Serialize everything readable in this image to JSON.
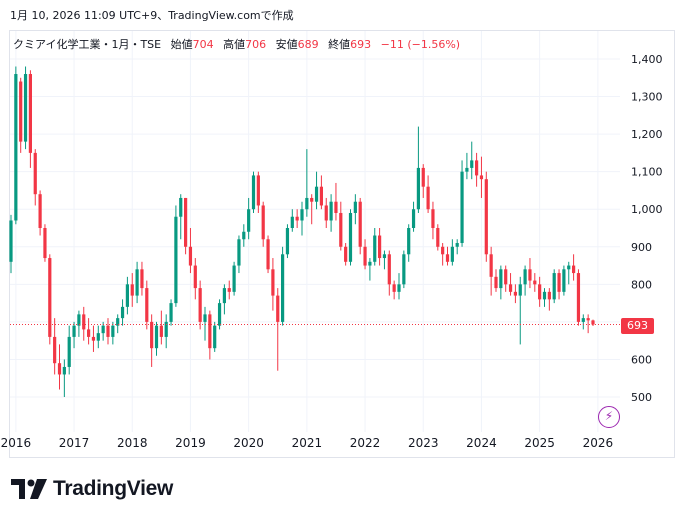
{
  "caption": "1月 10, 2026 11:09 UTC+9、TradingView.comで作成",
  "legend": {
    "symbol": "クミアイ化学工業・1月・TSE",
    "open_label": "始値",
    "open": "704",
    "high_label": "高値",
    "high": "706",
    "low_label": "安値",
    "low": "689",
    "close_label": "終値",
    "close": "693",
    "change": "−11 (−1.56%)"
  },
  "last_price_label": "693",
  "brand": "TradingView",
  "colors": {
    "up": "#089981",
    "down": "#f23645",
    "accent": "#9c27b0"
  },
  "chart_data": {
    "type": "candlestick",
    "interval": "1M",
    "ylim": [
      420,
      1440
    ],
    "y_ticks": [
      "500",
      "600",
      "700",
      "800",
      "900",
      "1,000",
      "1,100",
      "1,200",
      "1,300",
      "1,400"
    ],
    "x_ticks": [
      "2016",
      "2017",
      "2018",
      "2019",
      "2020",
      "2021",
      "2022",
      "2023",
      "2024",
      "2025",
      "2026"
    ],
    "last_price": 693,
    "start": "2015-12",
    "candles": [
      [
        860,
        985,
        830,
        970
      ],
      [
        970,
        1380,
        960,
        1360
      ],
      [
        1340,
        1350,
        1150,
        1180
      ],
      [
        1180,
        1380,
        1160,
        1360
      ],
      [
        1360,
        1370,
        1110,
        1150
      ],
      [
        1150,
        1160,
        1010,
        1040
      ],
      [
        1040,
        1050,
        930,
        950
      ],
      [
        950,
        960,
        860,
        870
      ],
      [
        870,
        880,
        640,
        660
      ],
      [
        660,
        710,
        560,
        590
      ],
      [
        590,
        640,
        520,
        560
      ],
      [
        560,
        600,
        500,
        580
      ],
      [
        580,
        690,
        560,
        660
      ],
      [
        660,
        700,
        630,
        690
      ],
      [
        690,
        730,
        660,
        720
      ],
      [
        720,
        740,
        650,
        680
      ],
      [
        680,
        710,
        640,
        660
      ],
      [
        660,
        690,
        620,
        650
      ],
      [
        650,
        690,
        630,
        670
      ],
      [
        670,
        700,
        650,
        690
      ],
      [
        690,
        710,
        640,
        660
      ],
      [
        660,
        700,
        640,
        690
      ],
      [
        690,
        720,
        670,
        710
      ],
      [
        710,
        760,
        690,
        740
      ],
      [
        740,
        820,
        720,
        800
      ],
      [
        800,
        830,
        740,
        770
      ],
      [
        770,
        860,
        750,
        840
      ],
      [
        840,
        860,
        770,
        790
      ],
      [
        790,
        810,
        680,
        700
      ],
      [
        700,
        720,
        580,
        630
      ],
      [
        630,
        700,
        610,
        690
      ],
      [
        690,
        730,
        640,
        660
      ],
      [
        660,
        720,
        630,
        700
      ],
      [
        700,
        760,
        690,
        750
      ],
      [
        750,
        1010,
        740,
        980
      ],
      [
        980,
        1040,
        920,
        1030
      ],
      [
        1030,
        1030,
        880,
        900
      ],
      [
        900,
        950,
        830,
        850
      ],
      [
        850,
        870,
        760,
        790
      ],
      [
        790,
        810,
        680,
        700
      ],
      [
        700,
        740,
        650,
        720
      ],
      [
        720,
        730,
        600,
        630
      ],
      [
        630,
        700,
        620,
        690
      ],
      [
        690,
        760,
        680,
        750
      ],
      [
        750,
        800,
        720,
        790
      ],
      [
        790,
        810,
        760,
        780
      ],
      [
        780,
        860,
        770,
        850
      ],
      [
        850,
        930,
        830,
        920
      ],
      [
        920,
        960,
        900,
        940
      ],
      [
        940,
        1030,
        920,
        1000
      ],
      [
        1000,
        1100,
        990,
        1090
      ],
      [
        1090,
        1100,
        990,
        1010
      ],
      [
        1010,
        1020,
        900,
        920
      ],
      [
        920,
        930,
        830,
        840
      ],
      [
        840,
        870,
        730,
        770
      ],
      [
        770,
        790,
        570,
        700
      ],
      [
        700,
        900,
        690,
        880
      ],
      [
        880,
        960,
        870,
        950
      ],
      [
        950,
        1000,
        940,
        980
      ],
      [
        980,
        1000,
        950,
        970
      ],
      [
        970,
        1020,
        930,
        1000
      ],
      [
        1000,
        1160,
        980,
        1030
      ],
      [
        1030,
        1040,
        960,
        1020
      ],
      [
        1020,
        1100,
        1000,
        1060
      ],
      [
        1060,
        1090,
        1000,
        1010
      ],
      [
        1010,
        1030,
        950,
        970
      ],
      [
        970,
        1040,
        940,
        1020
      ],
      [
        1020,
        1070,
        970,
        990
      ],
      [
        990,
        1020,
        890,
        900
      ],
      [
        900,
        910,
        850,
        860
      ],
      [
        860,
        1000,
        850,
        990
      ],
      [
        990,
        1040,
        960,
        1020
      ],
      [
        1020,
        1030,
        880,
        900
      ],
      [
        900,
        920,
        840,
        850
      ],
      [
        850,
        870,
        810,
        860
      ],
      [
        860,
        950,
        850,
        930
      ],
      [
        930,
        950,
        850,
        870
      ],
      [
        870,
        890,
        840,
        880
      ],
      [
        880,
        890,
        770,
        800
      ],
      [
        800,
        810,
        760,
        780
      ],
      [
        780,
        830,
        760,
        800
      ],
      [
        800,
        890,
        790,
        880
      ],
      [
        880,
        960,
        860,
        950
      ],
      [
        950,
        1020,
        940,
        1000
      ],
      [
        1000,
        1220,
        990,
        1110
      ],
      [
        1110,
        1120,
        1030,
        1060
      ],
      [
        1060,
        1090,
        990,
        1000
      ],
      [
        1000,
        1020,
        920,
        950
      ],
      [
        950,
        960,
        890,
        900
      ],
      [
        900,
        910,
        850,
        880
      ],
      [
        880,
        900,
        850,
        860
      ],
      [
        860,
        920,
        850,
        900
      ],
      [
        900,
        920,
        880,
        910
      ],
      [
        910,
        1130,
        900,
        1100
      ],
      [
        1100,
        1150,
        1080,
        1110
      ],
      [
        1110,
        1180,
        1080,
        1130
      ],
      [
        1130,
        1150,
        1060,
        1090
      ],
      [
        1090,
        1140,
        1030,
        1080
      ],
      [
        1080,
        1100,
        860,
        880
      ],
      [
        880,
        900,
        770,
        820
      ],
      [
        820,
        840,
        780,
        790
      ],
      [
        790,
        850,
        760,
        840
      ],
      [
        840,
        850,
        780,
        800
      ],
      [
        800,
        830,
        770,
        780
      ],
      [
        780,
        800,
        750,
        770
      ],
      [
        770,
        820,
        640,
        800
      ],
      [
        800,
        850,
        770,
        840
      ],
      [
        840,
        870,
        790,
        810
      ],
      [
        810,
        830,
        780,
        800
      ],
      [
        800,
        820,
        740,
        760
      ],
      [
        760,
        790,
        740,
        780
      ],
      [
        780,
        790,
        730,
        760
      ],
      [
        760,
        840,
        750,
        830
      ],
      [
        830,
        840,
        760,
        780
      ],
      [
        780,
        850,
        770,
        840
      ],
      [
        840,
        860,
        800,
        850
      ],
      [
        850,
        880,
        810,
        830
      ],
      [
        830,
        840,
        690,
        700
      ],
      [
        700,
        720,
        680,
        710
      ],
      [
        710,
        720,
        670,
        704
      ],
      [
        704,
        706,
        689,
        693
      ]
    ]
  }
}
